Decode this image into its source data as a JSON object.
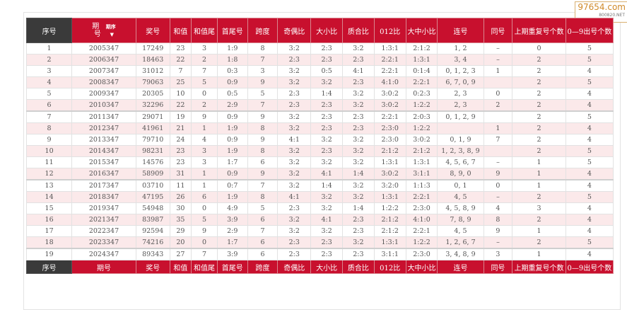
{
  "watermark": {
    "main": "97654.com",
    "sub": "800820.NET"
  },
  "header": {
    "seq": "序号",
    "issue_top": "期",
    "issue_bottom": "号",
    "sort_label": "期序",
    "sort_arrow": "▼",
    "cols": [
      "奖号",
      "和值",
      "和值尾",
      "首尾号",
      "跨度",
      "奇偶比",
      "大小比",
      "质合比",
      "012比",
      "大中小比",
      "连号",
      "同号",
      "上期重复号个数",
      "0—9出号个数"
    ]
  },
  "footer": [
    "序号",
    "期号",
    "奖号",
    "和值",
    "和值尾",
    "首尾号",
    "跨度",
    "奇偶比",
    "大小比",
    "质合比",
    "012比",
    "大中小比",
    "连号",
    "同号",
    "上期重复号个数",
    "0—9出号个数"
  ],
  "rows": [
    [
      "1",
      "2005347",
      "17249",
      "23",
      "3",
      "1:9",
      "8",
      "3:2",
      "2:3",
      "3:2",
      "1:3:1",
      "2:1:2",
      "1, 2",
      "–",
      "0",
      "5"
    ],
    [
      "2",
      "2006347",
      "18463",
      "22",
      "2",
      "1:8",
      "7",
      "2:3",
      "2:3",
      "2:3",
      "2:2:1",
      "1:3:1",
      "3, 4",
      "–",
      "2",
      "5"
    ],
    [
      "3",
      "2007347",
      "31012",
      "7",
      "7",
      "0:3",
      "3",
      "3:2",
      "0:5",
      "4:1",
      "2:2:1",
      "0:1:4",
      "0, 1, 2, 3",
      "1",
      "2",
      "4"
    ],
    [
      "4",
      "2008347",
      "79063",
      "25",
      "5",
      "0:9",
      "9",
      "3:2",
      "3:2",
      "2:3",
      "4:1:0",
      "2:2:1",
      "6, 7, 0, 9",
      "",
      "2",
      "5"
    ],
    [
      "5",
      "2009347",
      "20305",
      "10",
      "0",
      "0:5",
      "5",
      "2:3",
      "1:4",
      "3:2",
      "3:0:2",
      "0:2:3",
      "2, 3",
      "0",
      "2",
      "4"
    ],
    [
      "6",
      "2010347",
      "32296",
      "22",
      "2",
      "2:9",
      "7",
      "2:3",
      "2:3",
      "3:2",
      "3:0:2",
      "1:2:2",
      "2, 3",
      "2",
      "2",
      "4"
    ],
    [
      "7",
      "2011347",
      "29071",
      "19",
      "9",
      "0:9",
      "9",
      "3:2",
      "2:3",
      "2:3",
      "2:2:1",
      "2:0:3",
      "0, 1, 2, 9",
      "",
      "2",
      "5"
    ],
    [
      "8",
      "2012347",
      "41961",
      "21",
      "1",
      "1:9",
      "8",
      "3:2",
      "2:3",
      "2:3",
      "2:3:0",
      "1:2:2",
      "",
      "1",
      "2",
      "4"
    ],
    [
      "9",
      "2013347",
      "79710",
      "24",
      "4",
      "0:9",
      "9",
      "4:1",
      "3:2",
      "3:2",
      "2:3:0",
      "3:0:2",
      "0, 1, 9",
      "7",
      "2",
      "4"
    ],
    [
      "10",
      "2014347",
      "98231",
      "23",
      "3",
      "1:9",
      "8",
      "3:2",
      "2:3",
      "3:2",
      "2:1:2",
      "2:1:2",
      "1, 2, 3, 8, 9",
      "",
      "2",
      "5"
    ],
    [
      "11",
      "2015347",
      "14576",
      "23",
      "3",
      "1:7",
      "6",
      "3:2",
      "3:2",
      "3:2",
      "1:3:1",
      "1:3:1",
      "4, 5, 6, 7",
      "–",
      "1",
      "5"
    ],
    [
      "12",
      "2016347",
      "58909",
      "31",
      "1",
      "0:9",
      "9",
      "3:2",
      "4:1",
      "1:4",
      "3:0:2",
      "3:1:1",
      "8, 9, 0",
      "9",
      "1",
      "4"
    ],
    [
      "13",
      "2017347",
      "03710",
      "11",
      "1",
      "0:7",
      "7",
      "3:2",
      "1:4",
      "3:2",
      "3:2:0",
      "1:1:3",
      "0, 1",
      "0",
      "1",
      "4"
    ],
    [
      "14",
      "2018347",
      "47195",
      "26",
      "6",
      "1:9",
      "8",
      "4:1",
      "3:2",
      "3:2",
      "1:3:1",
      "2:2:1",
      "4, 5",
      "–",
      "2",
      "5"
    ],
    [
      "15",
      "2019347",
      "54948",
      "30",
      "0",
      "4:9",
      "5",
      "2:3",
      "3:2",
      "1:4",
      "1:2:2",
      "2:3:0",
      "4, 5, 8, 9",
      "4",
      "3",
      "4"
    ],
    [
      "16",
      "2021347",
      "83987",
      "35",
      "5",
      "3:9",
      "6",
      "3:2",
      "4:1",
      "2:3",
      "2:1:2",
      "4:1:0",
      "7, 8, 9",
      "8",
      "2",
      "4"
    ],
    [
      "17",
      "2022347",
      "92594",
      "29",
      "9",
      "2:9",
      "7",
      "3:2",
      "3:2",
      "2:3",
      "2:1:2",
      "2:2:1",
      "4, 5",
      "9",
      "1",
      "4"
    ],
    [
      "18",
      "2023347",
      "74216",
      "20",
      "0",
      "1:7",
      "6",
      "2:3",
      "2:3",
      "3:2",
      "1:3:1",
      "1:2:2",
      "1, 2, 6, 7",
      "–",
      "2",
      "5"
    ],
    [
      "19",
      "2024347",
      "89343",
      "27",
      "7",
      "3:9",
      "6",
      "2:3",
      "2:3",
      "2:3",
      "3:1:1",
      "2:3:0",
      "3, 4, 8, 9",
      "3",
      "1",
      "4"
    ]
  ],
  "group_starts": [
    6,
    12,
    18
  ]
}
